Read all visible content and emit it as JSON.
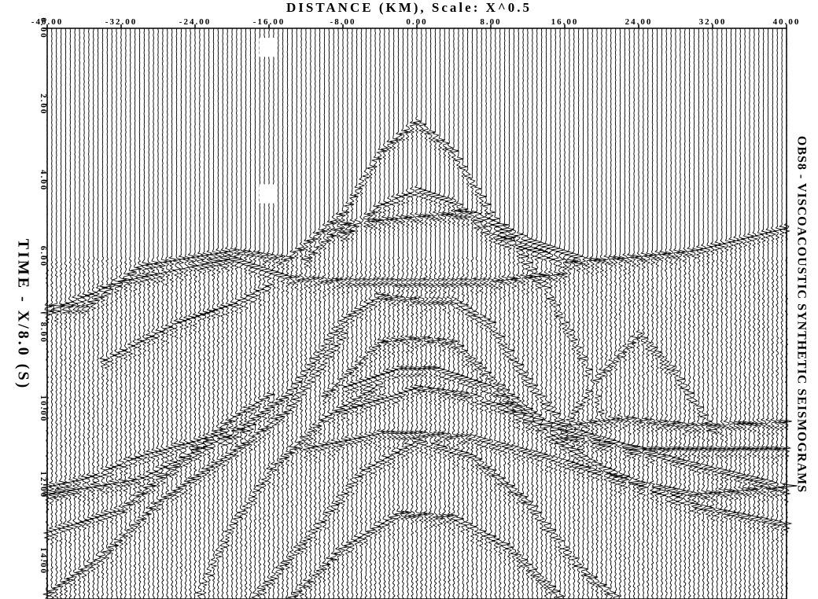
{
  "chart_data": {
    "type": "seismogram",
    "title": "DISTANCE (KM), Scale: X^0.5",
    "side_title": "OBS8 - VISCOACOUSTIC SYNTHETIC SEISMOGRAMS",
    "ylabel": "TIME - X/8.0 (S)",
    "x_ticks": [
      "-40.00",
      "-32.00",
      "-24.00",
      "-16.00",
      "-8.00",
      "0.00",
      "8.00",
      "16.00",
      "24.00",
      "32.00",
      "40.00"
    ],
    "y_ticks": [
      "0.00",
      "2.00",
      "4.00",
      "6.00",
      "8.00",
      "10.00",
      "12.00",
      "14.00"
    ],
    "xlim": [
      -40,
      40
    ],
    "ylim": [
      0,
      15
    ],
    "y_inverted": true,
    "trace_spacing_km": 0.5,
    "ink_color": "#000000",
    "background": "#ffffff",
    "arrivals": [
      {
        "name": "arrival-1",
        "points": [
          [
            -40,
            7.3
          ],
          [
            -36,
            7.3
          ],
          [
            -30,
            6.2
          ],
          [
            -20,
            5.8
          ],
          [
            -14,
            6.0
          ],
          [
            -8,
            4.8
          ],
          [
            -4,
            3.2
          ],
          [
            0,
            2.4
          ],
          [
            4,
            3.2
          ],
          [
            8,
            4.8
          ],
          [
            14,
            6.8
          ],
          [
            18,
            8.6
          ],
          [
            20,
            10.0
          ]
        ]
      },
      {
        "name": "arrival-2",
        "points": [
          [
            -8,
            5.4
          ],
          [
            -4,
            4.6
          ],
          [
            0,
            4.2
          ],
          [
            4,
            4.5
          ],
          [
            8,
            5.4
          ],
          [
            12,
            5.7
          ],
          [
            16,
            6.1
          ],
          [
            22,
            6.0
          ],
          [
            30,
            5.8
          ],
          [
            40,
            5.2
          ]
        ]
      },
      {
        "name": "arrival-3",
        "points": [
          [
            -12,
            6.0
          ],
          [
            -8,
            5.1
          ],
          [
            0,
            4.9
          ],
          [
            6,
            4.8
          ],
          [
            12,
            5.5
          ],
          [
            18,
            6.0
          ]
        ]
      },
      {
        "name": "arrival-4",
        "points": [
          [
            -40,
            7.4
          ],
          [
            -32,
            6.6
          ],
          [
            -26,
            6.3
          ],
          [
            -20,
            6.0
          ],
          [
            -14,
            6.5
          ],
          [
            -8,
            6.6
          ],
          [
            0,
            6.6
          ],
          [
            8,
            6.6
          ],
          [
            16,
            6.4
          ]
        ]
      },
      {
        "name": "arrival-5",
        "points": [
          [
            -40,
            12.2
          ],
          [
            -30,
            11.8
          ],
          [
            -20,
            10.6
          ],
          [
            -14,
            9.6
          ],
          [
            -8,
            7.6
          ],
          [
            -4,
            7.0
          ],
          [
            0,
            7.1
          ],
          [
            4,
            7.1
          ],
          [
            8,
            7.7
          ],
          [
            12,
            9.2
          ],
          [
            16,
            10.4
          ],
          [
            22,
            10.2
          ],
          [
            30,
            10.4
          ],
          [
            40,
            10.3
          ]
        ]
      },
      {
        "name": "arrival-6",
        "points": [
          [
            -10,
            9.6
          ],
          [
            -4,
            8.2
          ],
          [
            0,
            8.1
          ],
          [
            4,
            8.2
          ],
          [
            10,
            9.6
          ],
          [
            16,
            10.7
          ],
          [
            24,
            11.0
          ],
          [
            40,
            11.0
          ]
        ]
      },
      {
        "name": "arrival-7",
        "points": [
          [
            -8,
            9.4
          ],
          [
            -2,
            8.9
          ],
          [
            2,
            8.9
          ],
          [
            8,
            9.4
          ],
          [
            14,
            10.6
          ],
          [
            20,
            11.5
          ],
          [
            30,
            12.5
          ],
          [
            40,
            13.0
          ]
        ]
      },
      {
        "name": "arrival-8",
        "points": [
          [
            -8,
            10.0
          ],
          [
            0,
            9.4
          ],
          [
            6,
            9.6
          ],
          [
            12,
            10.2
          ],
          [
            18,
            10.6
          ],
          [
            28,
            11.3
          ],
          [
            40,
            12.0
          ]
        ]
      },
      {
        "name": "arrival-9",
        "points": [
          [
            -40,
            13.2
          ],
          [
            -32,
            12.6
          ],
          [
            -26,
            11.4
          ],
          [
            -20,
            10.2
          ],
          [
            -16,
            9.6
          ]
        ]
      },
      {
        "name": "arrival-10",
        "points": [
          [
            -40,
            14.8
          ],
          [
            -34,
            13.8
          ],
          [
            -28,
            12.4
          ],
          [
            -20,
            11.1
          ],
          [
            -14,
            10.0
          ],
          [
            -8,
            8.0
          ]
        ]
      },
      {
        "name": "arrival-11",
        "points": [
          [
            -24,
            15.0
          ],
          [
            -20,
            13.0
          ],
          [
            -16,
            11.6
          ],
          [
            -10,
            10.2
          ],
          [
            -4,
            9.3
          ]
        ]
      },
      {
        "name": "arrival-12",
        "points": [
          [
            -18,
            15.0
          ],
          [
            -12,
            13.4
          ],
          [
            -6,
            11.6
          ],
          [
            0,
            10.8
          ],
          [
            6,
            11.2
          ],
          [
            12,
            12.4
          ],
          [
            18,
            14.2
          ],
          [
            22,
            15.0
          ]
        ]
      },
      {
        "name": "arrival-13",
        "points": [
          [
            -14,
            15.0
          ],
          [
            -8,
            13.6
          ],
          [
            -2,
            12.7
          ],
          [
            4,
            12.8
          ],
          [
            10,
            13.6
          ],
          [
            16,
            15.0
          ]
        ]
      },
      {
        "name": "arrival-14",
        "points": [
          [
            -40,
            12.0
          ],
          [
            -36,
            11.8
          ],
          [
            -30,
            11.2
          ],
          [
            -24,
            10.8
          ],
          [
            -18,
            10.4
          ]
        ]
      },
      {
        "name": "arrival-15",
        "points": [
          [
            -34,
            8.7
          ],
          [
            -30,
            8.2
          ],
          [
            -26,
            7.7
          ],
          [
            -20,
            7.2
          ],
          [
            -16,
            6.7
          ]
        ]
      },
      {
        "name": "arrival-16",
        "points": [
          [
            16,
            10.4
          ],
          [
            20,
            9.0
          ],
          [
            24,
            8.0
          ],
          [
            28,
            9.0
          ],
          [
            32,
            10.5
          ]
        ]
      },
      {
        "name": "arrival-17",
        "points": [
          [
            -12,
            11.0
          ],
          [
            -4,
            10.6
          ],
          [
            0,
            10.6
          ],
          [
            6,
            10.7
          ],
          [
            14,
            11.2
          ],
          [
            22,
            11.8
          ],
          [
            30,
            12.2
          ],
          [
            40,
            12.0
          ]
        ]
      }
    ]
  }
}
